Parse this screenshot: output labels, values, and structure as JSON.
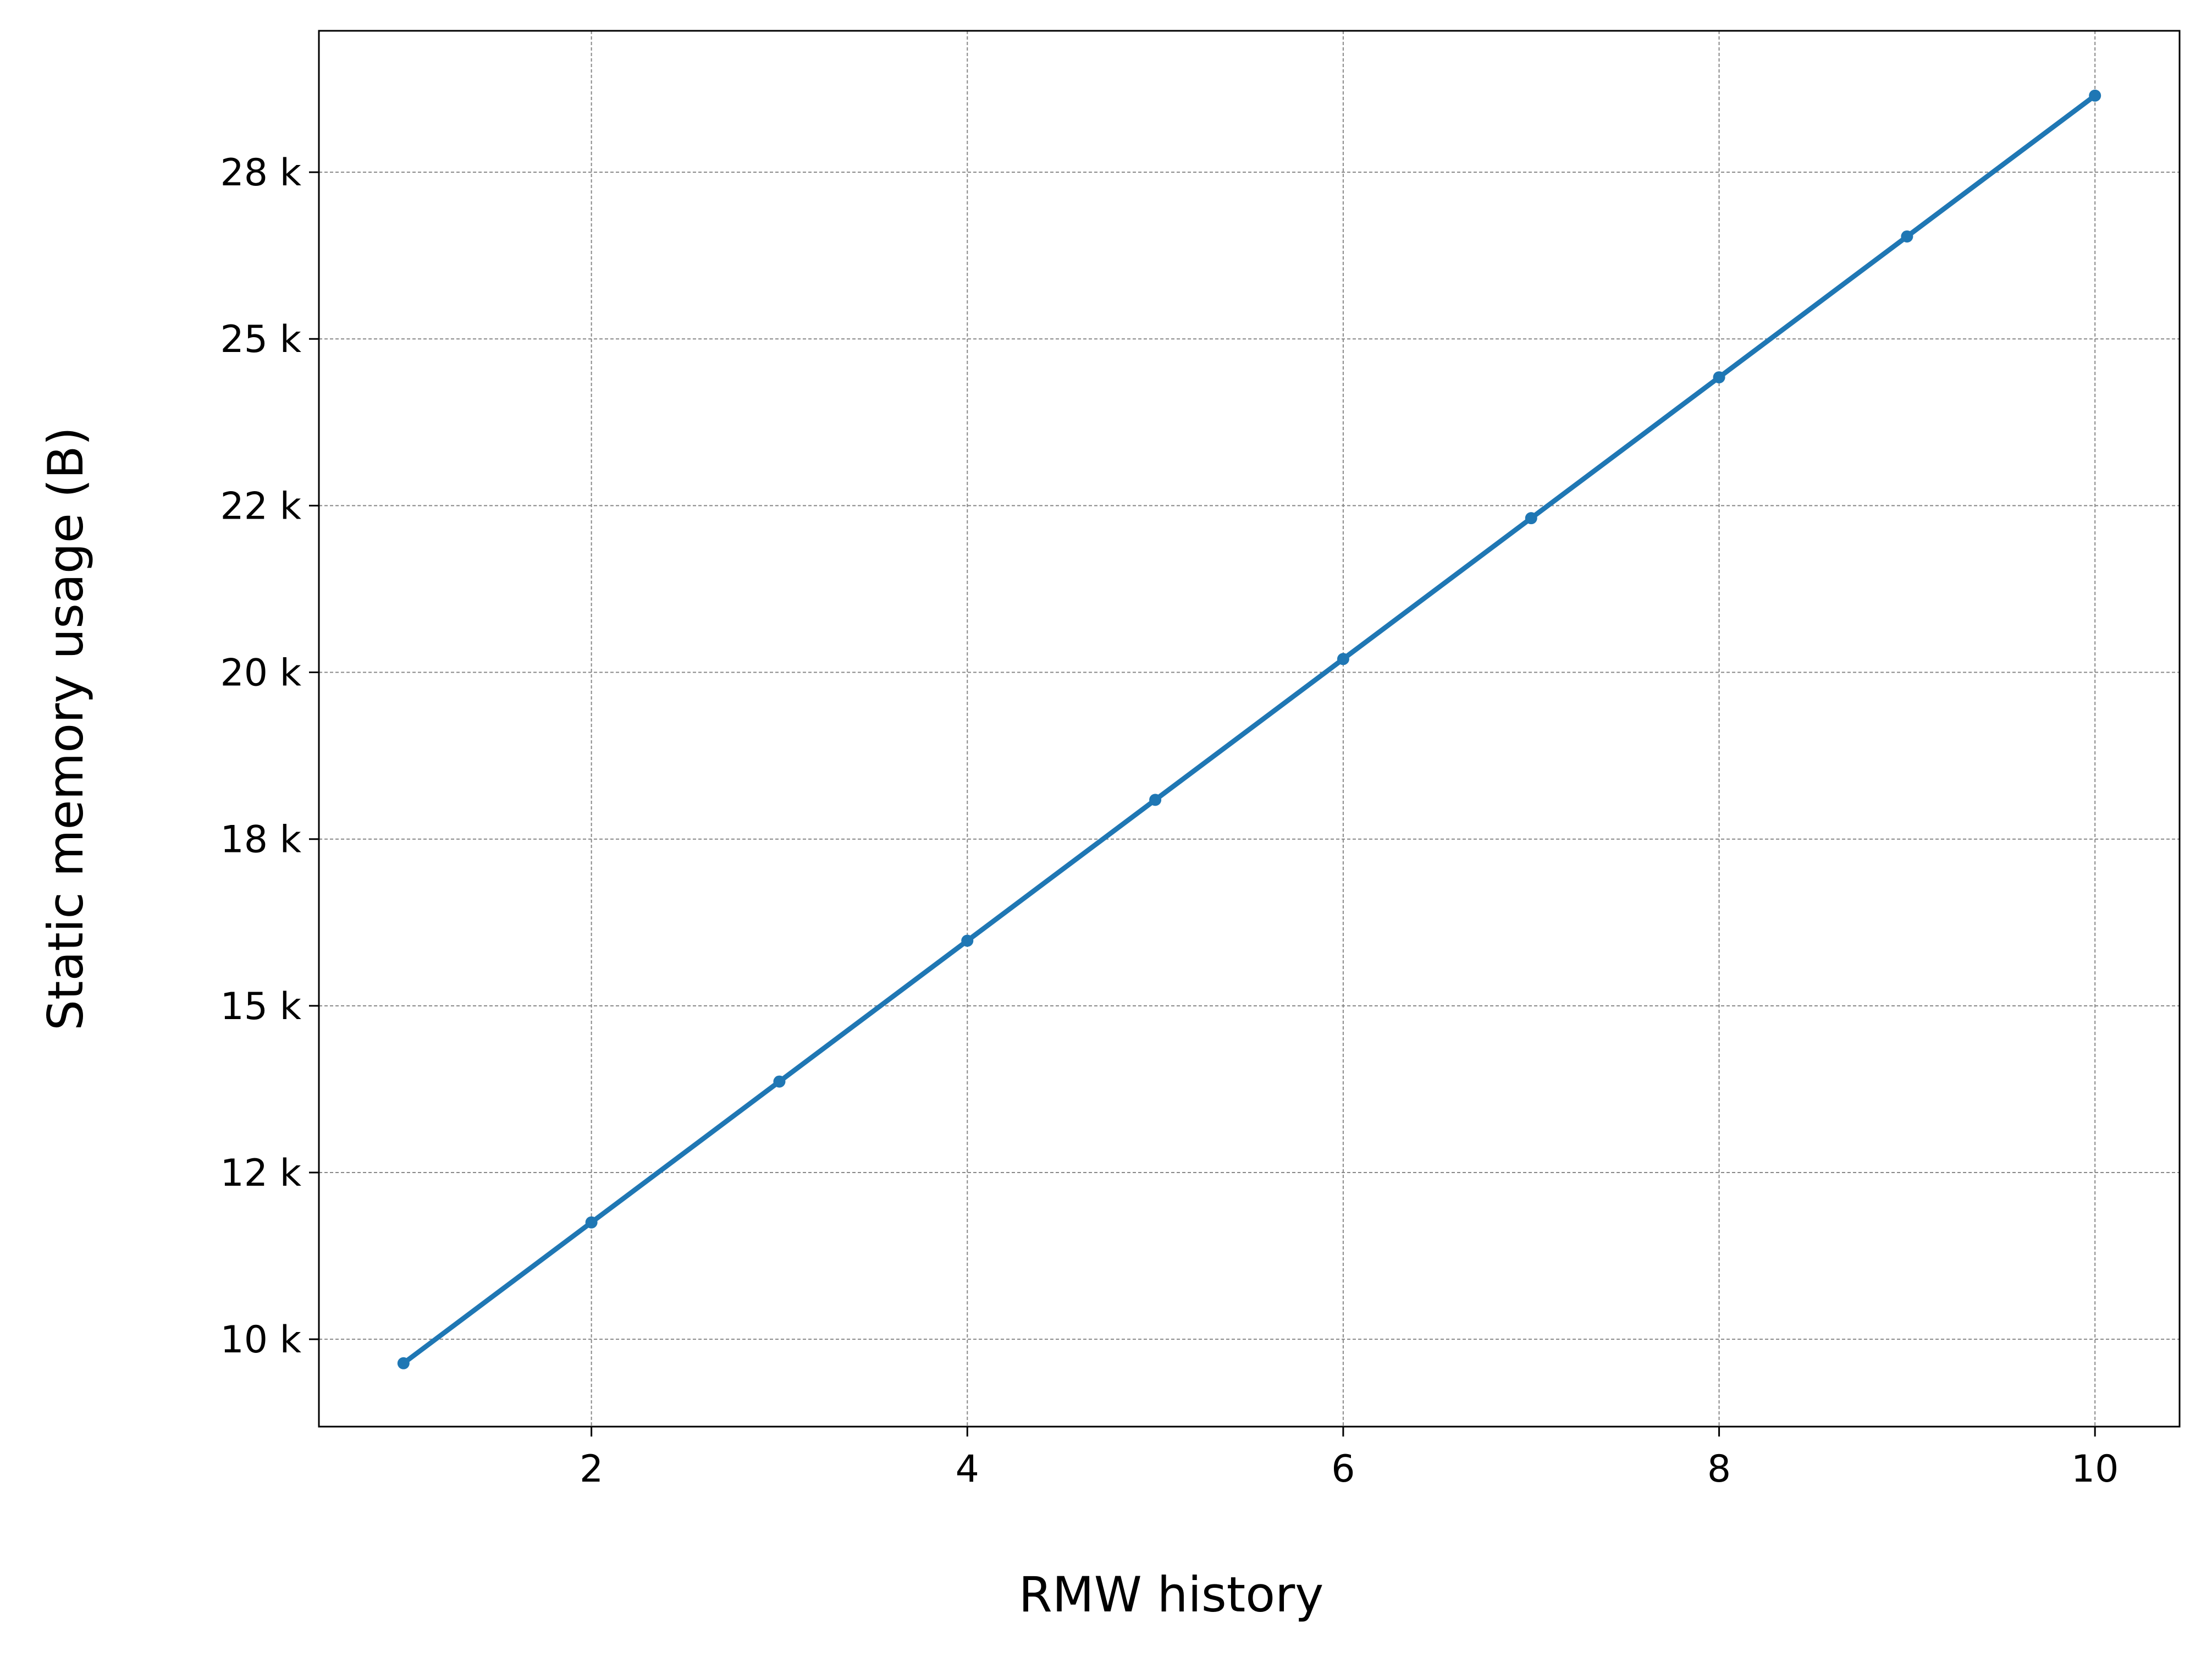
{
  "chart_data": {
    "type": "line",
    "x_label": "RMW history",
    "y_label": "Static memory usage (B)",
    "x": [
      1,
      2,
      3,
      4,
      5,
      6,
      7,
      8,
      9,
      10
    ],
    "series": [
      {
        "color": "#1f77b4",
        "values": [
          9640,
          11752,
          13864,
          15976,
          18088,
          20200,
          22312,
          24424,
          26536,
          28648
        ]
      }
    ],
    "xlim": [
      0.55,
      10.45
    ],
    "ylim": [
      8690,
      29620
    ],
    "xticks": [
      2,
      4,
      6,
      8,
      10
    ],
    "yticks": [
      {
        "value": 10000,
        "label": "10 k"
      },
      {
        "value": 12500,
        "label": "12 k"
      },
      {
        "value": 15000,
        "label": "15 k"
      },
      {
        "value": 17500,
        "label": "18 k"
      },
      {
        "value": 20000,
        "label": "20 k"
      },
      {
        "value": 22500,
        "label": "22 k"
      },
      {
        "value": 25000,
        "label": "25 k"
      },
      {
        "value": 27500,
        "label": "28 k"
      }
    ],
    "grid": true
  }
}
